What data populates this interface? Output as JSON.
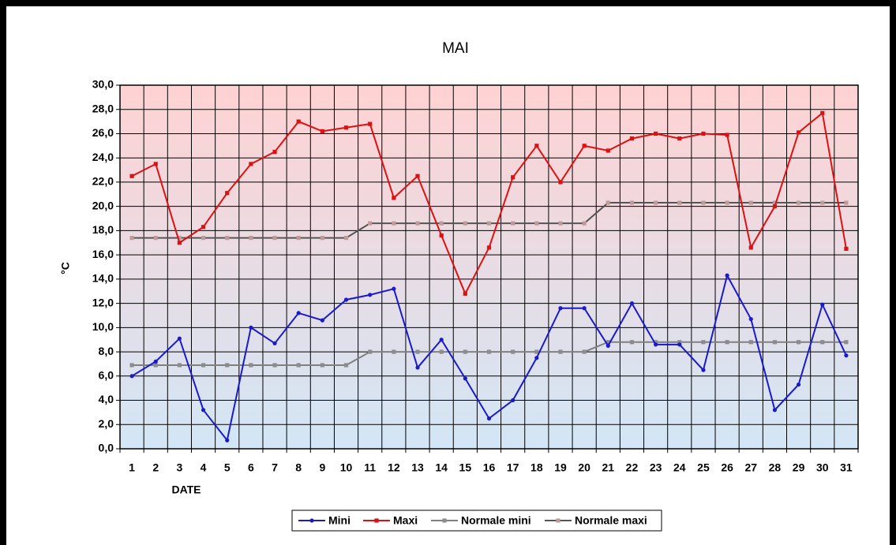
{
  "chart_data": {
    "type": "line",
    "title": "MAI",
    "x_label": "DATE",
    "y_label": "°C",
    "categories": [
      "1",
      "2",
      "3",
      "4",
      "5",
      "6",
      "7",
      "8",
      "9",
      "10",
      "11",
      "12",
      "13",
      "14",
      "15",
      "16",
      "17",
      "18",
      "19",
      "20",
      "21",
      "22",
      "23",
      "24",
      "25",
      "26",
      "27",
      "28",
      "29",
      "30",
      "31"
    ],
    "series": [
      {
        "name": "Mini",
        "color": "#1a1acc",
        "marker": "circle",
        "values": [
          6.0,
          7.2,
          9.1,
          3.2,
          0.7,
          10.0,
          8.7,
          11.2,
          10.6,
          12.3,
          12.7,
          13.2,
          6.7,
          9.0,
          5.8,
          2.5,
          4.0,
          7.5,
          11.6,
          11.6,
          8.5,
          12.0,
          8.6,
          8.6,
          6.5,
          14.3,
          10.7,
          3.2,
          5.3,
          11.9,
          7.7
        ]
      },
      {
        "name": "Maxi",
        "color": "#dd1111",
        "marker": "square",
        "values": [
          22.5,
          23.5,
          17.0,
          18.3,
          21.1,
          23.5,
          24.5,
          27.0,
          26.2,
          26.5,
          26.8,
          20.7,
          22.5,
          17.6,
          12.8,
          16.6,
          22.4,
          25.0,
          22.0,
          25.0,
          24.6,
          25.6,
          26.0,
          25.6,
          26.0,
          25.9,
          16.6,
          20.0,
          26.1,
          27.7,
          16.5
        ]
      },
      {
        "name": "Normale mini",
        "color": "#808080",
        "marker_color": "#8c8c8c",
        "marker": "square",
        "values": [
          6.9,
          6.9,
          6.9,
          6.9,
          6.9,
          6.9,
          6.9,
          6.9,
          6.9,
          6.9,
          8.0,
          8.0,
          8.0,
          8.0,
          8.0,
          8.0,
          8.0,
          8.0,
          8.0,
          8.0,
          8.8,
          8.8,
          8.8,
          8.8,
          8.8,
          8.8,
          8.8,
          8.8,
          8.8,
          8.8,
          8.8
        ]
      },
      {
        "name": "Normale maxi",
        "color": "#555555",
        "marker_color": "#c09a9a",
        "marker": "square",
        "values": [
          17.4,
          17.4,
          17.4,
          17.4,
          17.4,
          17.4,
          17.4,
          17.4,
          17.4,
          17.4,
          18.6,
          18.6,
          18.6,
          18.6,
          18.6,
          18.6,
          18.6,
          18.6,
          18.6,
          18.6,
          20.3,
          20.3,
          20.3,
          20.3,
          20.3,
          20.3,
          20.3,
          20.3,
          20.3,
          20.3,
          20.3
        ]
      }
    ],
    "ylim": [
      0,
      30
    ],
    "yticks": [
      {
        "value": 0,
        "label": "0,0"
      },
      {
        "value": 2,
        "label": "2,0"
      },
      {
        "value": 4,
        "label": "4,0"
      },
      {
        "value": 6,
        "label": "6,0"
      },
      {
        "value": 8,
        "label": "8,0"
      },
      {
        "value": 10,
        "label": "10,0"
      },
      {
        "value": 12,
        "label": "12,0"
      },
      {
        "value": 14,
        "label": "14,0"
      },
      {
        "value": 16,
        "label": "16,0"
      },
      {
        "value": 18,
        "label": "18,0"
      },
      {
        "value": 20,
        "label": "20,0"
      },
      {
        "value": 22,
        "label": "22,0"
      },
      {
        "value": 24,
        "label": "24,0"
      },
      {
        "value": 26,
        "label": "26,0"
      },
      {
        "value": 28,
        "label": "28,0"
      },
      {
        "value": 30,
        "label": "30,0"
      }
    ],
    "grid": true,
    "legend": "bottom"
  }
}
